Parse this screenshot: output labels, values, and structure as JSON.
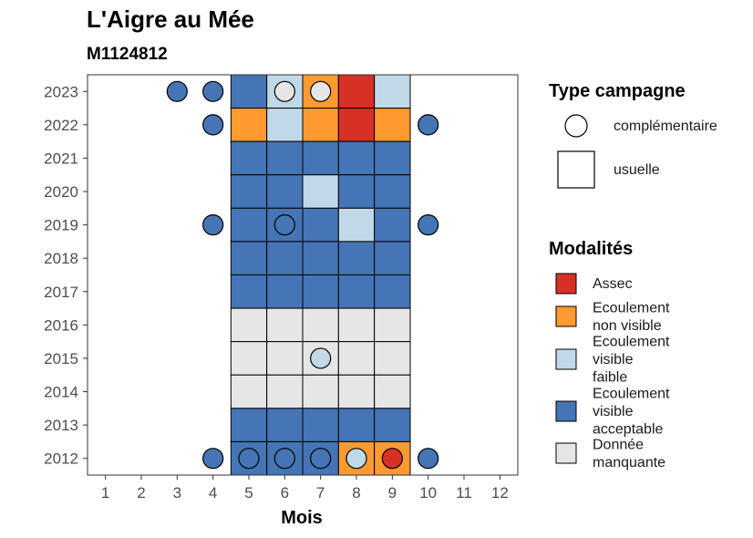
{
  "title": "L'Aigre au Mée",
  "subtitle": "M1124812",
  "chart_data": {
    "type": "heatmap",
    "xlabel": "Mois",
    "x_ticks": [
      "1",
      "2",
      "3",
      "4",
      "5",
      "6",
      "7",
      "8",
      "9",
      "10",
      "11",
      "12"
    ],
    "y_ticks": [
      "2012",
      "2013",
      "2014",
      "2015",
      "2016",
      "2017",
      "2018",
      "2019",
      "2020",
      "2021",
      "2022",
      "2023"
    ],
    "xlim": [
      0.5,
      12.5
    ],
    "ylim": [
      2011.5,
      2023.5
    ],
    "colors": {
      "Assec": "#d73027",
      "Ecoulement non visible": "#fd9a30",
      "Ecoulement visible faible": "#c0d9e8",
      "Ecoulement visible acceptable": "#4575b4",
      "Donnée manquante": "#e6e6e6"
    },
    "tiles": [
      {
        "year": 2023,
        "month": 5,
        "modalite": "Ecoulement visible acceptable"
      },
      {
        "year": 2023,
        "month": 6,
        "modalite": "Ecoulement visible faible"
      },
      {
        "year": 2023,
        "month": 7,
        "modalite": "Ecoulement non visible"
      },
      {
        "year": 2023,
        "month": 8,
        "modalite": "Assec"
      },
      {
        "year": 2023,
        "month": 9,
        "modalite": "Ecoulement visible faible"
      },
      {
        "year": 2022,
        "month": 5,
        "modalite": "Ecoulement non visible"
      },
      {
        "year": 2022,
        "month": 6,
        "modalite": "Ecoulement visible faible"
      },
      {
        "year": 2022,
        "month": 7,
        "modalite": "Ecoulement non visible"
      },
      {
        "year": 2022,
        "month": 8,
        "modalite": "Assec"
      },
      {
        "year": 2022,
        "month": 9,
        "modalite": "Ecoulement non visible"
      },
      {
        "year": 2021,
        "month": 5,
        "modalite": "Ecoulement visible acceptable"
      },
      {
        "year": 2021,
        "month": 6,
        "modalite": "Ecoulement visible acceptable"
      },
      {
        "year": 2021,
        "month": 7,
        "modalite": "Ecoulement visible acceptable"
      },
      {
        "year": 2021,
        "month": 8,
        "modalite": "Ecoulement visible acceptable"
      },
      {
        "year": 2021,
        "month": 9,
        "modalite": "Ecoulement visible acceptable"
      },
      {
        "year": 2020,
        "month": 5,
        "modalite": "Ecoulement visible acceptable"
      },
      {
        "year": 2020,
        "month": 6,
        "modalite": "Ecoulement visible acceptable"
      },
      {
        "year": 2020,
        "month": 7,
        "modalite": "Ecoulement visible faible"
      },
      {
        "year": 2020,
        "month": 8,
        "modalite": "Ecoulement visible acceptable"
      },
      {
        "year": 2020,
        "month": 9,
        "modalite": "Ecoulement visible acceptable"
      },
      {
        "year": 2019,
        "month": 5,
        "modalite": "Ecoulement visible acceptable"
      },
      {
        "year": 2019,
        "month": 6,
        "modalite": "Ecoulement visible acceptable"
      },
      {
        "year": 2019,
        "month": 7,
        "modalite": "Ecoulement visible acceptable"
      },
      {
        "year": 2019,
        "month": 8,
        "modalite": "Ecoulement visible faible"
      },
      {
        "year": 2019,
        "month": 9,
        "modalite": "Ecoulement visible acceptable"
      },
      {
        "year": 2018,
        "month": 5,
        "modalite": "Ecoulement visible acceptable"
      },
      {
        "year": 2018,
        "month": 6,
        "modalite": "Ecoulement visible acceptable"
      },
      {
        "year": 2018,
        "month": 7,
        "modalite": "Ecoulement visible acceptable"
      },
      {
        "year": 2018,
        "month": 8,
        "modalite": "Ecoulement visible acceptable"
      },
      {
        "year": 2018,
        "month": 9,
        "modalite": "Ecoulement visible acceptable"
      },
      {
        "year": 2017,
        "month": 5,
        "modalite": "Ecoulement visible acceptable"
      },
      {
        "year": 2017,
        "month": 6,
        "modalite": "Ecoulement visible acceptable"
      },
      {
        "year": 2017,
        "month": 7,
        "modalite": "Ecoulement visible acceptable"
      },
      {
        "year": 2017,
        "month": 8,
        "modalite": "Ecoulement visible acceptable"
      },
      {
        "year": 2017,
        "month": 9,
        "modalite": "Ecoulement visible acceptable"
      },
      {
        "year": 2016,
        "month": 5,
        "modalite": "Donnée manquante"
      },
      {
        "year": 2016,
        "month": 6,
        "modalite": "Donnée manquante"
      },
      {
        "year": 2016,
        "month": 7,
        "modalite": "Donnée manquante"
      },
      {
        "year": 2016,
        "month": 8,
        "modalite": "Donnée manquante"
      },
      {
        "year": 2016,
        "month": 9,
        "modalite": "Donnée manquante"
      },
      {
        "year": 2015,
        "month": 5,
        "modalite": "Donnée manquante"
      },
      {
        "year": 2015,
        "month": 6,
        "modalite": "Donnée manquante"
      },
      {
        "year": 2015,
        "month": 7,
        "modalite": "Donnée manquante"
      },
      {
        "year": 2015,
        "month": 8,
        "modalite": "Donnée manquante"
      },
      {
        "year": 2015,
        "month": 9,
        "modalite": "Donnée manquante"
      },
      {
        "year": 2014,
        "month": 5,
        "modalite": "Donnée manquante"
      },
      {
        "year": 2014,
        "month": 6,
        "modalite": "Donnée manquante"
      },
      {
        "year": 2014,
        "month": 7,
        "modalite": "Donnée manquante"
      },
      {
        "year": 2014,
        "month": 8,
        "modalite": "Donnée manquante"
      },
      {
        "year": 2014,
        "month": 9,
        "modalite": "Donnée manquante"
      },
      {
        "year": 2013,
        "month": 5,
        "modalite": "Ecoulement visible acceptable"
      },
      {
        "year": 2013,
        "month": 6,
        "modalite": "Ecoulement visible acceptable"
      },
      {
        "year": 2013,
        "month": 7,
        "modalite": "Ecoulement visible acceptable"
      },
      {
        "year": 2013,
        "month": 8,
        "modalite": "Ecoulement visible acceptable"
      },
      {
        "year": 2013,
        "month": 9,
        "modalite": "Ecoulement visible acceptable"
      },
      {
        "year": 2012,
        "month": 5,
        "modalite": "Ecoulement visible acceptable"
      },
      {
        "year": 2012,
        "month": 6,
        "modalite": "Ecoulement visible acceptable"
      },
      {
        "year": 2012,
        "month": 7,
        "modalite": "Ecoulement visible acceptable"
      },
      {
        "year": 2012,
        "month": 8,
        "modalite": "Ecoulement non visible"
      },
      {
        "year": 2012,
        "month": 9,
        "modalite": "Ecoulement non visible"
      }
    ],
    "points": [
      {
        "year": 2023,
        "month": 3,
        "modalite": "Ecoulement visible acceptable"
      },
      {
        "year": 2023,
        "month": 4,
        "modalite": "Ecoulement visible acceptable"
      },
      {
        "year": 2023,
        "month": 6,
        "modalite": "Donnée manquante"
      },
      {
        "year": 2023,
        "month": 7,
        "modalite": "Donnée manquante"
      },
      {
        "year": 2022,
        "month": 4,
        "modalite": "Ecoulement visible acceptable"
      },
      {
        "year": 2022,
        "month": 10,
        "modalite": "Ecoulement visible acceptable"
      },
      {
        "year": 2019,
        "month": 4,
        "modalite": "Ecoulement visible acceptable"
      },
      {
        "year": 2019,
        "month": 6,
        "modalite": "Ecoulement visible acceptable"
      },
      {
        "year": 2019,
        "month": 10,
        "modalite": "Ecoulement visible acceptable"
      },
      {
        "year": 2015,
        "month": 7,
        "modalite": "Ecoulement visible faible"
      },
      {
        "year": 2012,
        "month": 4,
        "modalite": "Ecoulement visible acceptable"
      },
      {
        "year": 2012,
        "month": 5,
        "modalite": "Ecoulement visible acceptable"
      },
      {
        "year": 2012,
        "month": 6,
        "modalite": "Ecoulement visible acceptable"
      },
      {
        "year": 2012,
        "month": 7,
        "modalite": "Ecoulement visible acceptable"
      },
      {
        "year": 2012,
        "month": 8,
        "modalite": "Ecoulement visible faible"
      },
      {
        "year": 2012,
        "month": 9,
        "modalite": "Assec"
      },
      {
        "year": 2012,
        "month": 10,
        "modalite": "Ecoulement visible acceptable"
      }
    ],
    "legend_type": {
      "title": "Type campagne",
      "items": [
        {
          "label": "complémentaire",
          "shape": "circle"
        },
        {
          "label": "usuelle",
          "shape": "square"
        }
      ]
    },
    "legend_modalites": {
      "title": "Modalités",
      "items": [
        {
          "label": "Assec",
          "lines": [
            "Assec"
          ],
          "color": "#d73027"
        },
        {
          "label": "Ecoulement non visible",
          "lines": [
            "Ecoulement",
            "non visible"
          ],
          "color": "#fd9a30"
        },
        {
          "label": "Ecoulement visible faible",
          "lines": [
            "Ecoulement",
            "visible",
            "faible"
          ],
          "color": "#c0d9e8"
        },
        {
          "label": "Ecoulement visible acceptable",
          "lines": [
            "Ecoulement",
            "visible",
            "acceptable"
          ],
          "color": "#4575b4"
        },
        {
          "label": "Donnée manquante",
          "lines": [
            "Donnée",
            "manquante"
          ],
          "color": "#e6e6e6"
        }
      ]
    },
    "legend_position": "right",
    "grid": false
  }
}
